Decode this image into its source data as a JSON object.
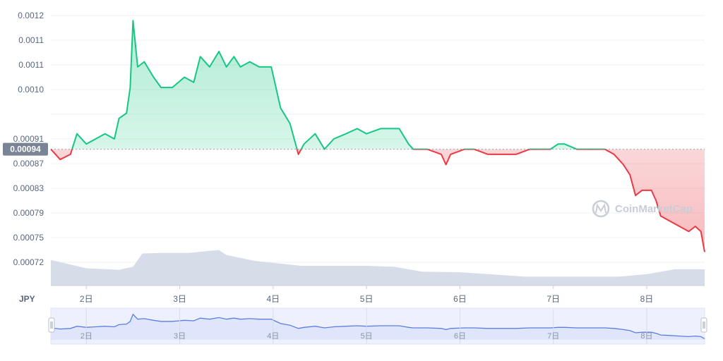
{
  "chart_data": {
    "type": "line",
    "currency": "JPY",
    "baseline_value": 0.00094,
    "baseline_label": "0.00094",
    "y_ticks": [
      "0.0012",
      "0.0011",
      "0.0011",
      "0.0010",
      "0.00094",
      "0.00091",
      "0.00087",
      "0.00083",
      "0.00079",
      "0.00075",
      "0.00072"
    ],
    "ylim": [
      0.00072,
      0.0012
    ],
    "x_ticks": [
      "2日",
      "3日",
      "4日",
      "5日",
      "6日",
      "7日",
      "8日"
    ],
    "x_tick_values": [
      2,
      3,
      4,
      5,
      6,
      7,
      8
    ],
    "xlim": [
      1.62,
      8.62
    ],
    "above_color": "#16c784",
    "below_color": "#ea3943",
    "volume_color": "#cfd6e4",
    "navigator_color": "#5b7fe0",
    "watermark": "CoinMarketCap",
    "price_series": [
      [
        1.62,
        0.00094
      ],
      [
        1.72,
        0.00092
      ],
      [
        1.83,
        0.00093
      ],
      [
        1.9,
        0.00097
      ],
      [
        2.0,
        0.00095
      ],
      [
        2.1,
        0.00096
      ],
      [
        2.2,
        0.00097
      ],
      [
        2.3,
        0.00096
      ],
      [
        2.35,
        0.001
      ],
      [
        2.43,
        0.00101
      ],
      [
        2.47,
        0.00106
      ],
      [
        2.5,
        0.00119
      ],
      [
        2.55,
        0.0011
      ],
      [
        2.62,
        0.00111
      ],
      [
        2.72,
        0.00108
      ],
      [
        2.8,
        0.00106
      ],
      [
        2.92,
        0.00106
      ],
      [
        3.05,
        0.00108
      ],
      [
        3.15,
        0.00107
      ],
      [
        3.22,
        0.00112
      ],
      [
        3.32,
        0.0011
      ],
      [
        3.42,
        0.00113
      ],
      [
        3.5,
        0.0011
      ],
      [
        3.58,
        0.00112
      ],
      [
        3.65,
        0.0011
      ],
      [
        3.75,
        0.00111
      ],
      [
        3.85,
        0.0011
      ],
      [
        3.98,
        0.0011
      ],
      [
        4.08,
        0.00102
      ],
      [
        4.18,
        0.00099
      ],
      [
        4.27,
        0.00093
      ],
      [
        4.33,
        0.00095
      ],
      [
        4.45,
        0.00097
      ],
      [
        4.55,
        0.00094
      ],
      [
        4.65,
        0.00096
      ],
      [
        4.78,
        0.00097
      ],
      [
        4.9,
        0.00098
      ],
      [
        5.0,
        0.00097
      ],
      [
        5.15,
        0.00098
      ],
      [
        5.25,
        0.00098
      ],
      [
        5.35,
        0.00098
      ],
      [
        5.45,
        0.00095
      ],
      [
        5.5,
        0.00094
      ],
      [
        5.65,
        0.00094
      ],
      [
        5.8,
        0.00093
      ],
      [
        5.85,
        0.00091
      ],
      [
        5.9,
        0.00093
      ],
      [
        6.05,
        0.00094
      ],
      [
        6.15,
        0.00094
      ],
      [
        6.3,
        0.00093
      ],
      [
        6.45,
        0.00093
      ],
      [
        6.6,
        0.00093
      ],
      [
        6.75,
        0.00094
      ],
      [
        6.87,
        0.00094
      ],
      [
        6.97,
        0.00094
      ],
      [
        7.05,
        0.00095
      ],
      [
        7.12,
        0.00095
      ],
      [
        7.25,
        0.00094
      ],
      [
        7.4,
        0.00094
      ],
      [
        7.55,
        0.00094
      ],
      [
        7.65,
        0.00093
      ],
      [
        7.75,
        0.00091
      ],
      [
        7.82,
        0.00089
      ],
      [
        7.88,
        0.00085
      ],
      [
        7.95,
        0.00086
      ],
      [
        8.05,
        0.00086
      ],
      [
        8.1,
        0.00084
      ],
      [
        8.15,
        0.00081
      ],
      [
        8.25,
        0.0008
      ],
      [
        8.35,
        0.00079
      ],
      [
        8.45,
        0.00078
      ],
      [
        8.52,
        0.00079
      ],
      [
        8.58,
        0.00078
      ],
      [
        8.62,
        0.00074
      ]
    ],
    "volume_series": [
      [
        1.62,
        0.52
      ],
      [
        2.0,
        0.35
      ],
      [
        2.35,
        0.32
      ],
      [
        2.5,
        0.38
      ],
      [
        2.6,
        0.65
      ],
      [
        2.8,
        0.66
      ],
      [
        3.1,
        0.66
      ],
      [
        3.3,
        0.7
      ],
      [
        3.42,
        0.72
      ],
      [
        3.5,
        0.62
      ],
      [
        3.8,
        0.5
      ],
      [
        4.0,
        0.46
      ],
      [
        4.3,
        0.4
      ],
      [
        4.6,
        0.4
      ],
      [
        5.0,
        0.4
      ],
      [
        5.3,
        0.38
      ],
      [
        5.6,
        0.28
      ],
      [
        6.0,
        0.27
      ],
      [
        6.4,
        0.22
      ],
      [
        6.7,
        0.18
      ],
      [
        7.0,
        0.18
      ],
      [
        7.3,
        0.18
      ],
      [
        7.7,
        0.18
      ],
      [
        8.0,
        0.23
      ],
      [
        8.3,
        0.33
      ],
      [
        8.62,
        0.33
      ]
    ]
  }
}
